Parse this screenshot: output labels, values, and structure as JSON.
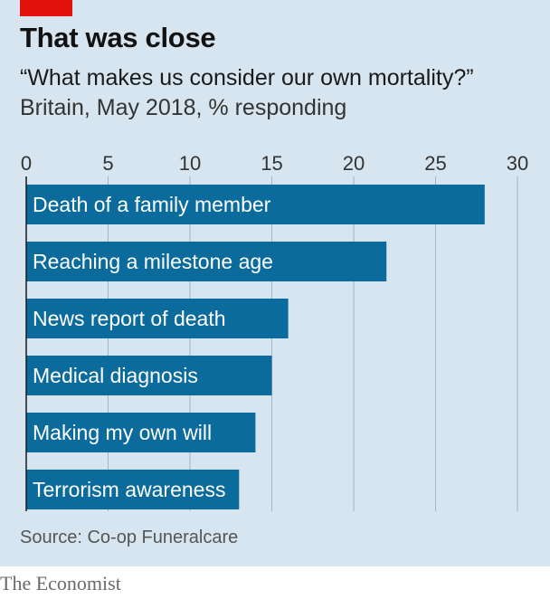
{
  "header": {
    "title": "That was close",
    "subtitle": "“What makes us consider our own mortality?”",
    "description": "Britain, May 2018, % responding"
  },
  "footer": {
    "source": "Source: Co-op Funeralcare",
    "brand": "The Economist"
  },
  "colors": {
    "bar": "#0b6b9c",
    "background": "#d6e5ef",
    "grid": "#9fb8c6",
    "accent": "#e3120b"
  },
  "chart_data": {
    "type": "bar",
    "orientation": "horizontal",
    "categories": [
      "Death of a family member",
      "Reaching a milestone age",
      "News report of death",
      "Medical diagnosis",
      "Making my own will",
      "Terrorism awareness"
    ],
    "values": [
      28,
      22,
      16,
      15,
      14,
      13
    ],
    "xlim": [
      0,
      30
    ],
    "xticks": [
      0,
      5,
      10,
      15,
      20,
      25,
      30
    ],
    "tick_labels_position": "top",
    "grid": true,
    "legend": "none"
  }
}
